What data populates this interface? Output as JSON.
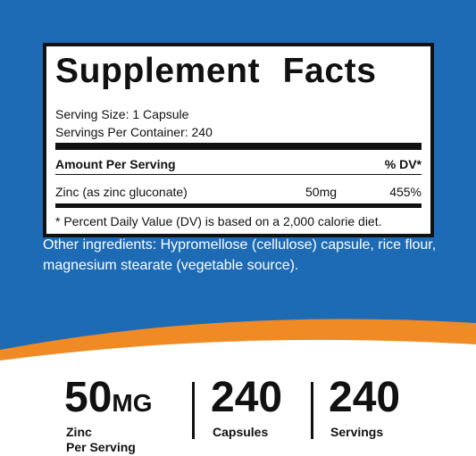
{
  "facts_panel": {
    "title": "Supplement Facts",
    "serving_size": "Serving Size: 1 Capsule",
    "servings_per_container": "Servings Per Container: 240",
    "header_amount": "Amount Per Serving",
    "header_dv": "% DV*",
    "rows": [
      {
        "name": "Zinc (as zinc gluconate)",
        "amount": "50mg",
        "dv": "455%"
      }
    ],
    "footnote": "* Percent Daily Value (DV) is based on a 2,000 calorie diet."
  },
  "other_ingredients": {
    "lines": [
      "Other ingredients: Hypromellose (cellulose) capsule, rice flour,",
      "magnesium stearate (vegetable source)."
    ]
  },
  "stats": [
    {
      "value": "50",
      "unit": "MG",
      "lines": [
        "Zinc",
        "Per Serving"
      ]
    },
    {
      "value": "240",
      "lines": [
        "Capsules"
      ]
    },
    {
      "value": "240",
      "lines": [
        "Servings"
      ]
    }
  ]
}
